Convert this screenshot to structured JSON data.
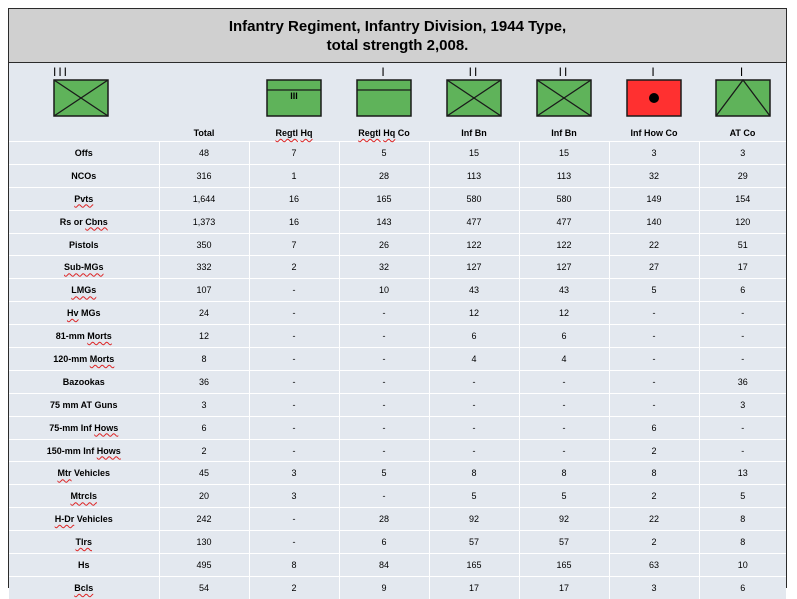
{
  "title": {
    "line1": "Infantry Regiment, Infantry Division, 1944 Type,",
    "line2": "total strength 2,008."
  },
  "colors": {
    "green": "#5fb35a",
    "red": "#ff3030",
    "header_bg": "#d0d0d0",
    "table_bg": "#e3e8ef"
  },
  "columns": [
    {
      "label": "",
      "echelon": "III",
      "symbol": "infantry",
      "color": "green"
    },
    {
      "label": "Total",
      "echelon": "",
      "symbol": "none",
      "color": ""
    },
    {
      "label": "Regtl Hq",
      "echelon": "",
      "symbol": "hq",
      "color": "green",
      "inner_mark": "III"
    },
    {
      "label": "Regtl Hq Co",
      "echelon": "I",
      "symbol": "hq",
      "color": "green",
      "inner_mark": ""
    },
    {
      "label": "Inf Bn",
      "echelon": "II",
      "symbol": "infantry",
      "color": "green"
    },
    {
      "label": "Inf Bn",
      "echelon": "II",
      "symbol": "infantry",
      "color": "green"
    },
    {
      "label": "Inf How Co",
      "echelon": "I",
      "symbol": "howitzer",
      "color": "red"
    },
    {
      "label": "AT Co",
      "echelon": "I",
      "symbol": "antitank",
      "color": "green"
    }
  ],
  "rows": [
    {
      "label": "Offs",
      "values": [
        "48",
        "7",
        "5",
        "15",
        "15",
        "3",
        "3"
      ]
    },
    {
      "label": "NCOs",
      "values": [
        "316",
        "1",
        "28",
        "113",
        "113",
        "32",
        "29"
      ]
    },
    {
      "label": "Pvts",
      "values": [
        "1,644",
        "16",
        "165",
        "580",
        "580",
        "149",
        "154"
      ]
    },
    {
      "label": "Rs or Cbns",
      "values": [
        "1,373",
        "16",
        "143",
        "477",
        "477",
        "140",
        "120"
      ]
    },
    {
      "label": "Pistols",
      "values": [
        "350",
        "7",
        "26",
        "122",
        "122",
        "22",
        "51"
      ]
    },
    {
      "label": "Sub-MGs",
      "values": [
        "332",
        "2",
        "32",
        "127",
        "127",
        "27",
        "17"
      ]
    },
    {
      "label": "LMGs",
      "values": [
        "107",
        "-",
        "10",
        "43",
        "43",
        "5",
        "6"
      ]
    },
    {
      "label": "Hv MGs",
      "values": [
        "24",
        "-",
        "-",
        "12",
        "12",
        "-",
        "-"
      ]
    },
    {
      "label": "81-mm Morts",
      "values": [
        "12",
        "-",
        "-",
        "6",
        "6",
        "-",
        "-"
      ]
    },
    {
      "label": "120-mm Morts",
      "values": [
        "8",
        "-",
        "-",
        "4",
        "4",
        "-",
        "-"
      ]
    },
    {
      "label": "Bazookas",
      "values": [
        "36",
        "-",
        "-",
        "-",
        "-",
        "-",
        "36"
      ]
    },
    {
      "label": "75 mm AT Guns",
      "values": [
        "3",
        "-",
        "-",
        "-",
        "-",
        "-",
        "3"
      ]
    },
    {
      "label": "75-mm Inf Hows",
      "values": [
        "6",
        "-",
        "-",
        "-",
        "-",
        "6",
        "-"
      ]
    },
    {
      "label": "150-mm Inf Hows",
      "values": [
        "2",
        "-",
        "-",
        "-",
        "-",
        "2",
        "-"
      ]
    },
    {
      "label": "Mtr Vehicles",
      "values": [
        "45",
        "3",
        "5",
        "8",
        "8",
        "8",
        "13"
      ]
    },
    {
      "label": "Mtrcls",
      "values": [
        "20",
        "3",
        "-",
        "5",
        "5",
        "2",
        "5"
      ]
    },
    {
      "label": "H-Dr Vehicles",
      "values": [
        "242",
        "-",
        "28",
        "92",
        "92",
        "22",
        "8"
      ]
    },
    {
      "label": "Tlrs",
      "values": [
        "130",
        "-",
        "6",
        "57",
        "57",
        "2",
        "8"
      ]
    },
    {
      "label": "Hs",
      "values": [
        "495",
        "8",
        "84",
        "165",
        "165",
        "63",
        "10"
      ]
    },
    {
      "label": "Bcls",
      "values": [
        "54",
        "2",
        "9",
        "17",
        "17",
        "3",
        "6"
      ]
    }
  ]
}
